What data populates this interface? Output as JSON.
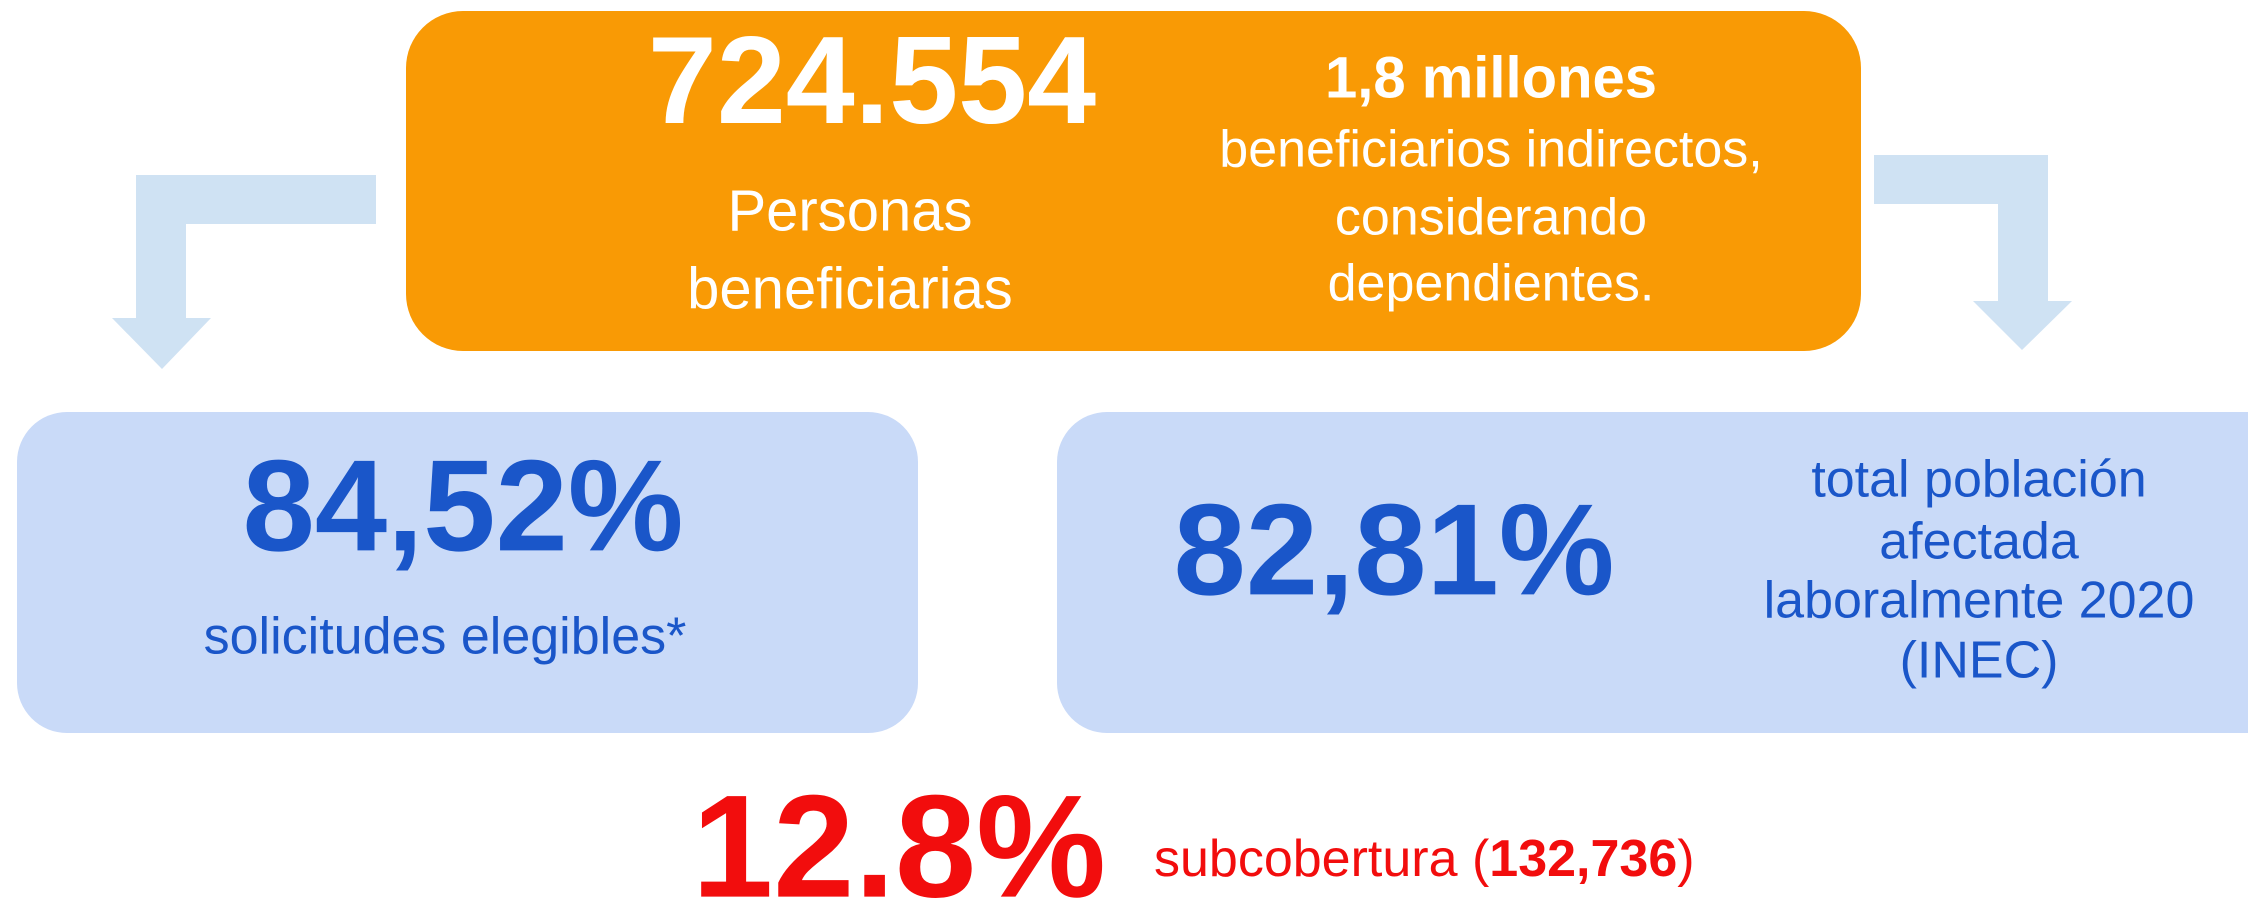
{
  "headline": {
    "number": "724.554",
    "label": [
      "Personas",
      "beneficiarias"
    ]
  },
  "indirect": {
    "title": "1,8 millones",
    "lines": [
      "beneficiarios indirectos,",
      "considerando",
      "dependientes."
    ]
  },
  "left_card": {
    "number": "84,52%",
    "label": "solicitudes elegibles*"
  },
  "right_card": {
    "number": "82,81%",
    "lines": [
      "total población",
      "afectada",
      "laboralmente 2020",
      "(INEC)"
    ]
  },
  "footer": {
    "number": "12.8%",
    "label": "subcobertura (",
    "count": "132,736",
    "close": ")"
  }
}
